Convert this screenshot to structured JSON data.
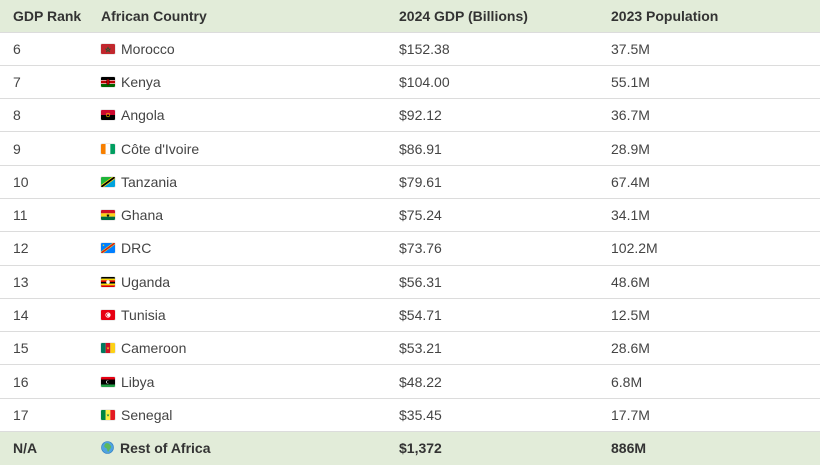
{
  "headers": [
    "GDP Rank",
    "African Country",
    "2024 GDP (Billions)",
    "2023 Population"
  ],
  "rows": [
    {
      "rank": "6",
      "country": "Morocco",
      "flag": "morocco-flag-icon",
      "gdp": "$152.38",
      "population": "37.5M"
    },
    {
      "rank": "7",
      "country": "Kenya",
      "flag": "kenya-flag-icon",
      "gdp": "$104.00",
      "population": "55.1M"
    },
    {
      "rank": "8",
      "country": "Angola",
      "flag": "angola-flag-icon",
      "gdp": "$92.12",
      "population": "36.7M"
    },
    {
      "rank": "9",
      "country": "Côte d'Ivoire",
      "flag": "cote-divoire-flag-icon",
      "gdp": "$86.91",
      "population": "28.9M"
    },
    {
      "rank": "10",
      "country": "Tanzania",
      "flag": "tanzania-flag-icon",
      "gdp": "$79.61",
      "population": "67.4M"
    },
    {
      "rank": "11",
      "country": "Ghana",
      "flag": "ghana-flag-icon",
      "gdp": "$75.24",
      "population": "34.1M"
    },
    {
      "rank": "12",
      "country": "DRC",
      "flag": "drc-flag-icon",
      "gdp": "$73.76",
      "population": "102.2M"
    },
    {
      "rank": "13",
      "country": "Uganda",
      "flag": "uganda-flag-icon",
      "gdp": "$56.31",
      "population": "48.6M"
    },
    {
      "rank": "14",
      "country": "Tunisia",
      "flag": "tunisia-flag-icon",
      "gdp": "$54.71",
      "population": "12.5M"
    },
    {
      "rank": "15",
      "country": "Cameroon",
      "flag": "cameroon-flag-icon",
      "gdp": "$53.21",
      "population": "28.6M"
    },
    {
      "rank": "16",
      "country": "Libya",
      "flag": "libya-flag-icon",
      "gdp": "$48.22",
      "population": "6.8M"
    },
    {
      "rank": "17",
      "country": "Senegal",
      "flag": "senegal-flag-icon",
      "gdp": "$35.45",
      "population": "17.7M"
    }
  ],
  "total_row": {
    "rank": "N/A",
    "country": "Rest of Africa",
    "icon": "globe-africa-icon",
    "gdp": "$1,372",
    "population": "886M"
  },
  "colors": {
    "header_bg": "#e2ecd9",
    "total_bg": "#e2ecd9",
    "row_divider": "#dcdcdc"
  }
}
